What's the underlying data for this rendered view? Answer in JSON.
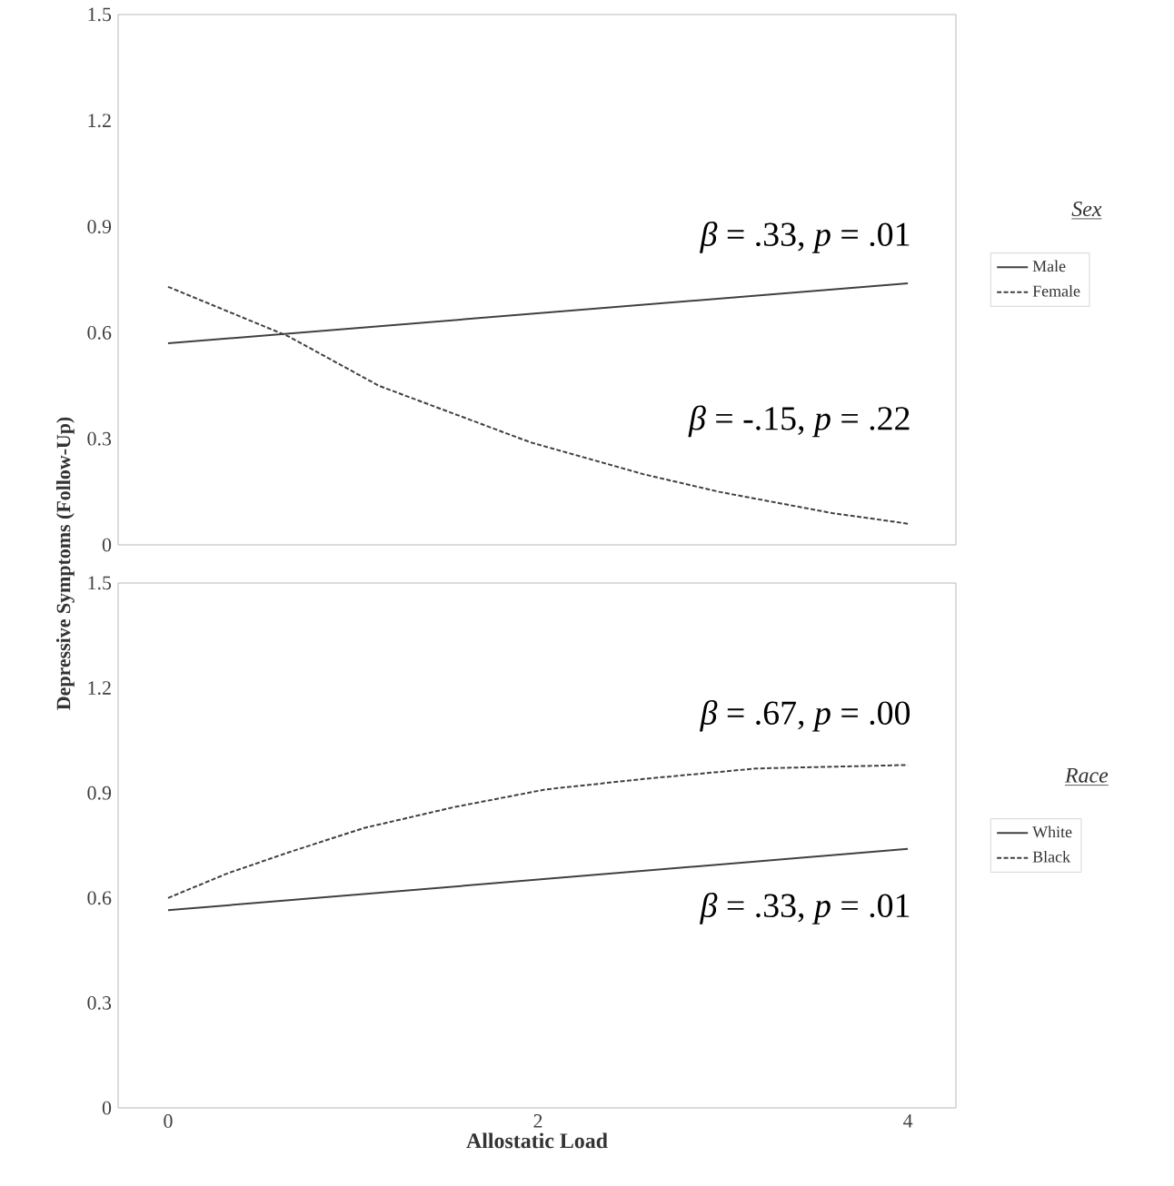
{
  "chart_data": [
    {
      "type": "line",
      "ylabel": "Depressive Symptoms (Follow-Up)",
      "legend_title": "Sex",
      "legend": "right",
      "tick_labels": "y",
      "xlim": [
        -0.27,
        4.26
      ],
      "ylim": [
        0,
        1.5
      ],
      "yticks": [
        {
          "value": 0,
          "label": "0"
        },
        0.3,
        0.6,
        0.9,
        1.2,
        1.5
      ],
      "series": [
        {
          "name": "Male",
          "color": "#404040",
          "line_style": "solid",
          "x": [
            0,
            4
          ],
          "values": [
            0.57,
            0.74
          ]
        },
        {
          "name": "Female",
          "color": "#404040",
          "line_style": "dashed",
          "x": [
            0,
            0.65,
            1.14,
            1.55,
            1.96,
            2.57,
            2.98,
            3.59,
            4
          ],
          "values": [
            0.73,
            0.59,
            0.45,
            0.37,
            0.29,
            0.2,
            0.15,
            0.09,
            0.06
          ]
        }
      ],
      "annotations": [
        "*β* = .33, *p* = .01",
        "*β* = -.15, *p* = .22"
      ]
    },
    {
      "type": "line",
      "xlabel": "Allostatic Load",
      "legend_title": "Race",
      "legend": "right",
      "xlim": [
        -0.27,
        4.26
      ],
      "xticks": [
        0,
        2,
        4
      ],
      "ylim": [
        0,
        1.5
      ],
      "yticks": [
        {
          "value": 0,
          "label": "0"
        },
        0.3,
        0.6,
        0.9,
        1.2,
        1.5
      ],
      "series": [
        {
          "name": "White",
          "color": "#404040",
          "line_style": "solid",
          "x": [
            0,
            4
          ],
          "values": [
            0.565,
            0.74
          ]
        },
        {
          "name": "Black",
          "color": "#404040",
          "line_style": "dashed",
          "x": [
            0,
            0.32,
            0.65,
            1.06,
            1.55,
            2.04,
            2.57,
            3.18,
            4
          ],
          "values": [
            0.6,
            0.67,
            0.73,
            0.8,
            0.86,
            0.91,
            0.94,
            0.97,
            0.98
          ]
        }
      ],
      "annotations": [
        "*β* = .67, *p* = .00",
        "*β* = .33, *p* = .01"
      ]
    }
  ]
}
